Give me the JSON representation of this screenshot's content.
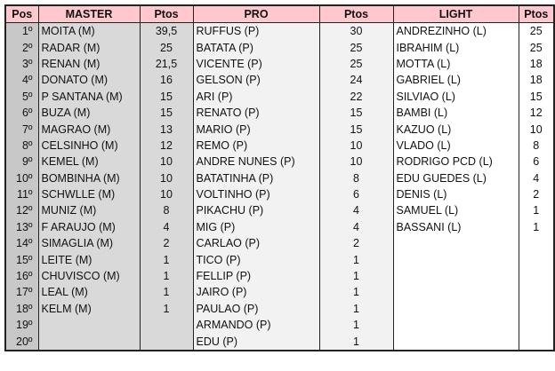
{
  "headers": [
    "Pos",
    "MASTER",
    "Ptos",
    "PRO",
    "Ptos",
    "LIGHT",
    "Ptos"
  ],
  "colors": {
    "header": "#ffc7ce",
    "pos": "#c8c8c8",
    "master": "#d9d9d9",
    "pro": "#f2f2f2",
    "light": "#ffffff"
  },
  "rows": [
    [
      "1º",
      "MOITA (M)",
      "39,5",
      "RUFFUS (P)",
      "30",
      "ANDREZINHO (L)",
      "25"
    ],
    [
      "2º",
      "RADAR (M)",
      "25",
      "BATATA (P)",
      "25",
      "IBRAHIM (L)",
      "25"
    ],
    [
      "3º",
      "RENAN (M)",
      "21,5",
      "VICENTE (P)",
      "25",
      "MOTTA (L)",
      "18"
    ],
    [
      "4º",
      "DONATO (M)",
      "16",
      "GELSON (P)",
      "24",
      "GABRIEL (L)",
      "18"
    ],
    [
      "5º",
      "P SANTANA (M)",
      "15",
      "ARI (P)",
      "22",
      "SILVIAO (L)",
      "15"
    ],
    [
      "6º",
      "BUZA (M)",
      "15",
      "RENATO (P)",
      "15",
      "BAMBI (L)",
      "12"
    ],
    [
      "7º",
      "MAGRAO (M)",
      "13",
      "MARIO (P)",
      "15",
      "KAZUO (L)",
      "10"
    ],
    [
      "8º",
      "CELSINHO (M)",
      "12",
      "REMO (P)",
      "10",
      "VLADO (L)",
      "8"
    ],
    [
      "9º",
      "KEMEL (M)",
      "10",
      "ANDRE NUNES (P)",
      "10",
      "RODRIGO PCD (L)",
      "6"
    ],
    [
      "10º",
      "BOMBINHA (M)",
      "10",
      "BATATINHA (P)",
      "8",
      "EDU GUEDES (L)",
      "4"
    ],
    [
      "11º",
      "SCHWLLE (M)",
      "10",
      "VOLTINHO (P)",
      "6",
      "DENIS (L)",
      "2"
    ],
    [
      "12º",
      "MUNIZ (M)",
      "8",
      "PIKACHU (P)",
      "4",
      "SAMUEL (L)",
      "1"
    ],
    [
      "13º",
      "F ARAUJO (M)",
      "4",
      "MIG (P)",
      "4",
      "BASSANI (L)",
      "1"
    ],
    [
      "14º",
      "SIMAGLIA (M)",
      "2",
      "CARLAO (P)",
      "2",
      "",
      ""
    ],
    [
      "15º",
      "LEITE (M)",
      "1",
      "TICO (P)",
      "1",
      "",
      ""
    ],
    [
      "16º",
      "CHUVISCO (M)",
      "1",
      "FELLIP (P)",
      "1",
      "",
      ""
    ],
    [
      "17º",
      "LEAL (M)",
      "1",
      "JAIRO (P)",
      "1",
      "",
      ""
    ],
    [
      "18º",
      "KELM (M)",
      "1",
      "PAULAO (P)",
      "1",
      "",
      ""
    ],
    [
      "19º",
      "",
      "",
      "ARMANDO (P)",
      "1",
      "",
      ""
    ],
    [
      "20º",
      "",
      "",
      "EDU (P)",
      "1",
      "",
      ""
    ]
  ]
}
